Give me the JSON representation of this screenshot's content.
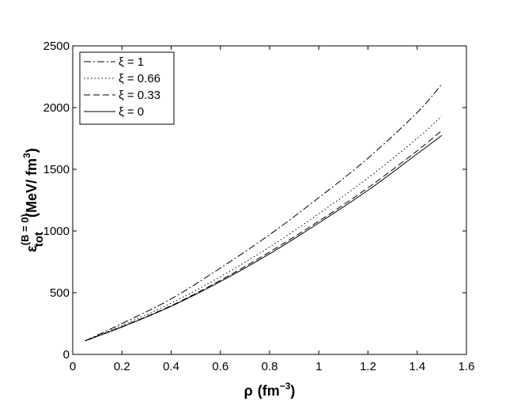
{
  "chart_data": {
    "type": "line",
    "title": "",
    "xlabel": {
      "main": "ρ",
      "unit": "(fm",
      "unit_exp": "−3",
      "unit_close": ")"
    },
    "ylabel": {
      "symbol": "ε",
      "sup": "(B = 0)",
      "sub": "tot",
      "unit": "(MeV/ fm",
      "unit_exp": "3",
      "unit_close": ")"
    },
    "xlim": [
      0,
      1.6
    ],
    "ylim": [
      0,
      2500
    ],
    "xticks": [
      0,
      0.2,
      0.4,
      0.6,
      0.8,
      1,
      1.2,
      1.4,
      1.6
    ],
    "xtick_labels": [
      "0",
      "0.2",
      "0.4",
      "0.6",
      "0.8",
      "1",
      "1.2",
      "1.4",
      "1.6"
    ],
    "yticks": [
      0,
      500,
      1000,
      1500,
      2000,
      2500
    ],
    "ytick_labels": [
      "0",
      "500",
      "1000",
      "1500",
      "2000",
      "2500"
    ],
    "grid": false,
    "legend_position": "top-left",
    "x": [
      0.05,
      0.2,
      0.4,
      0.6,
      0.8,
      1.0,
      1.2,
      1.4,
      1.5
    ],
    "series": [
      {
        "name": "ξ = 1",
        "style": "dashdot",
        "values": [
          110,
          250,
          450,
          700,
          970,
          1270,
          1590,
          1960,
          2190
        ]
      },
      {
        "name": "ξ = 0.66",
        "style": "dotted",
        "values": [
          110,
          235,
          415,
          630,
          870,
          1140,
          1430,
          1750,
          1930
        ]
      },
      {
        "name": "ξ = 0.33",
        "style": "dashed",
        "values": [
          110,
          225,
          395,
          600,
          830,
          1080,
          1350,
          1650,
          1815
        ]
      },
      {
        "name": "ξ = 0",
        "style": "solid",
        "values": [
          110,
          222,
          390,
          590,
          815,
          1065,
          1330,
          1625,
          1775
        ]
      }
    ]
  }
}
